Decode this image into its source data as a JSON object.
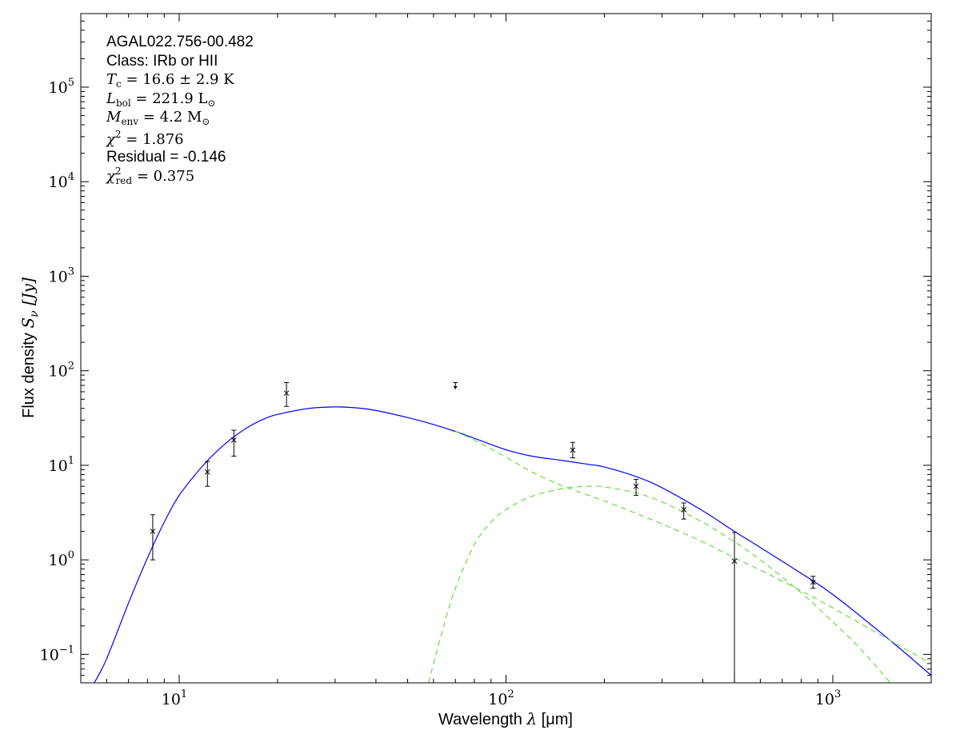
{
  "chart_data": {
    "type": "scatter",
    "xlabel": "Wavelength λ [μm]",
    "xlabel_parts": {
      "prefix": "Wavelength ",
      "symbol": "λ",
      "suffix": " [μm]"
    },
    "ylabel": "Flux density S_ν [Jy]",
    "ylabel_parts": {
      "prefix": "Flux density ",
      "symbol": "S",
      "symbol_sub": "ν",
      "suffix": " [Jy]"
    },
    "x_scale": "log",
    "y_scale": "log",
    "xlim": [
      5,
      2000
    ],
    "ylim": [
      0.05,
      600000
    ],
    "x_ticks": [
      {
        "base": "10",
        "exp": "1",
        "value": 10
      },
      {
        "base": "10",
        "exp": "2",
        "value": 100
      },
      {
        "base": "10",
        "exp": "3",
        "value": 1000
      }
    ],
    "y_ticks": [
      {
        "base": "10",
        "exp": "−1",
        "value": 0.1
      },
      {
        "base": "10",
        "exp": "0",
        "value": 1
      },
      {
        "base": "10",
        "exp": "1",
        "value": 10
      },
      {
        "base": "10",
        "exp": "2",
        "value": 100
      },
      {
        "base": "10",
        "exp": "3",
        "value": 1000
      },
      {
        "base": "10",
        "exp": "4",
        "value": 10000
      },
      {
        "base": "10",
        "exp": "5",
        "value": 100000
      }
    ],
    "grid": false,
    "annotations": {
      "source": "AGAL022.756-00.482",
      "class_label": "Class: IRb or HII",
      "tc": {
        "symbol": "T",
        "sub": "c",
        "text": " = 16.6 ± 2.9 K"
      },
      "lbol": {
        "symbol": "L",
        "sub": "bol",
        "text": " = 221.9 L",
        "text_sub": "⊙"
      },
      "menv": {
        "symbol": "M",
        "sub": "env",
        "text": " = 4.2 M",
        "text_sub": "⊙"
      },
      "chi2": {
        "symbol": "χ",
        "sup": "2",
        "text": " = 1.876"
      },
      "residual": "Residual = -0.146",
      "chi2_red": {
        "symbol": "χ",
        "sup": "2",
        "sub": "red",
        "text": " = 0.375"
      }
    },
    "observations": [
      {
        "x": 8.3,
        "y": 2.0,
        "yerr_low": 1.0,
        "yerr_high": 3.0
      },
      {
        "x": 12.2,
        "y": 8.5,
        "yerr_low": 6.0,
        "yerr_high": 11.0
      },
      {
        "x": 14.7,
        "y": 18.5,
        "yerr_low": 12.5,
        "yerr_high": 23.5
      },
      {
        "x": 21.3,
        "y": 58.0,
        "yerr_low": 42.0,
        "yerr_high": 75.0
      },
      {
        "x": 160,
        "y": 14.5,
        "yerr_low": 12.0,
        "yerr_high": 17.5
      },
      {
        "x": 250,
        "y": 6.0,
        "yerr_low": 4.8,
        "yerr_high": 7.1
      },
      {
        "x": 350,
        "y": 3.4,
        "yerr_low": 2.7,
        "yerr_high": 4.0
      },
      {
        "x": 500,
        "y": 0.97,
        "yerr_low": 0.05,
        "yerr_high": 1.95
      },
      {
        "x": 870,
        "y": 0.58,
        "yerr_low": 0.5,
        "yerr_high": 0.67
      }
    ],
    "upper_limits": [
      {
        "x": 70,
        "y": 75.0,
        "limit_end": 65.0
      }
    ],
    "series": [
      {
        "style": "solid",
        "color": "#0000ff",
        "x": [
          5.5,
          6,
          7,
          8,
          9,
          10,
          12,
          14,
          16,
          18,
          20,
          25,
          30,
          35,
          40,
          50,
          60,
          70,
          80,
          100,
          120,
          150,
          180,
          200,
          250,
          300,
          400,
          500,
          600,
          800,
          1000,
          1500,
          2000
        ],
        "y": [
          0.05,
          0.09,
          0.35,
          1.05,
          2.5,
          4.8,
          10.5,
          17.5,
          24.5,
          30.5,
          34.5,
          40.0,
          41.5,
          40.5,
          38.0,
          32.0,
          27.0,
          22.8,
          19.3,
          14.6,
          12.5,
          11.2,
          10.2,
          9.6,
          7.6,
          5.8,
          3.3,
          2.0,
          1.35,
          0.72,
          0.43,
          0.14,
          0.06
        ]
      },
      {
        "style": "dashed",
        "color": "#66dd44",
        "x": [
          70,
          80,
          100,
          120,
          150,
          200,
          250,
          300,
          400,
          500,
          600,
          800,
          1000,
          1500,
          2000
        ],
        "y": [
          22.8,
          18.5,
          12.2,
          8.5,
          6.0,
          4.2,
          3.1,
          2.4,
          1.55,
          1.05,
          0.78,
          0.47,
          0.31,
          0.14,
          0.08
        ]
      },
      {
        "style": "dashed",
        "color": "#66dd44",
        "x": [
          58,
          60,
          65,
          70,
          80,
          90,
          100,
          120,
          150,
          180,
          200,
          250,
          300,
          400,
          500,
          600,
          800,
          1000,
          1200,
          1500
        ],
        "y": [
          0.05,
          0.08,
          0.22,
          0.5,
          1.45,
          2.5,
          3.4,
          4.7,
          5.7,
          6.0,
          5.9,
          5.1,
          4.1,
          2.5,
          1.55,
          1.0,
          0.45,
          0.22,
          0.12,
          0.05
        ]
      }
    ]
  }
}
